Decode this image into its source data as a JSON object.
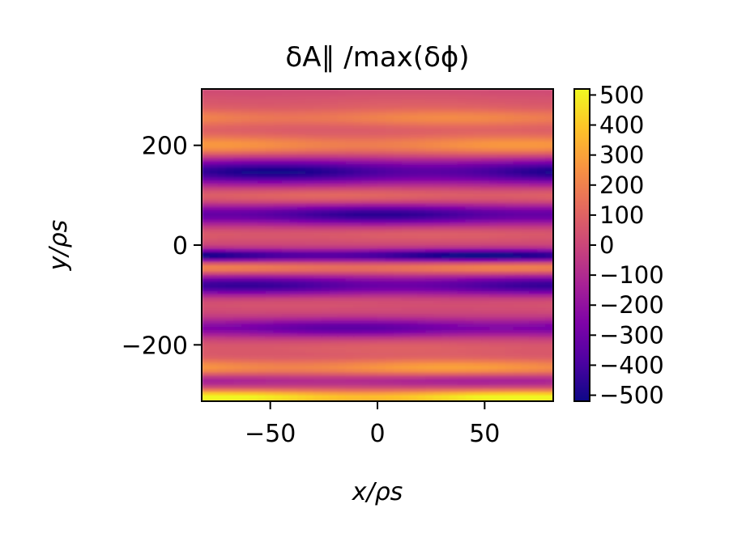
{
  "chart_data": {
    "type": "heatmap",
    "title": "δA∥ /max(δϕ)",
    "xlabel": "x/ρs",
    "ylabel": "y/ρs",
    "xlim": [
      -82,
      82
    ],
    "ylim": [
      -313,
      313
    ],
    "x_ticks": [
      -50,
      0,
      50
    ],
    "x_tick_labels": [
      "−50",
      "0",
      "50"
    ],
    "y_ticks": [
      -200,
      0,
      200
    ],
    "y_tick_labels": [
      "−200",
      "0",
      "200"
    ],
    "colormap": "plasma",
    "colorbar": {
      "vmin": -520,
      "vmax": 520,
      "ticks": [
        500,
        400,
        300,
        200,
        100,
        0,
        -100,
        -200,
        -300,
        -400,
        -500
      ],
      "tick_labels": [
        "500",
        "400",
        "300",
        "200",
        "100",
        "0",
        "−100",
        "−200",
        "−300",
        "−400",
        "−500"
      ]
    },
    "grid": false,
    "bands": [
      {
        "y": 285,
        "value": 60,
        "width": 25
      },
      {
        "y": 255,
        "value": 180,
        "width": 18
      },
      {
        "y": 225,
        "value": 40,
        "width": 18
      },
      {
        "y": 200,
        "value": 230,
        "width": 20
      },
      {
        "y": 148,
        "value": -430,
        "width": 25
      },
      {
        "y": 100,
        "value": 120,
        "width": 16
      },
      {
        "y": 62,
        "value": -400,
        "width": 20
      },
      {
        "y": 22,
        "value": 80,
        "width": 15
      },
      {
        "y": -20,
        "value": -470,
        "width": 12
      },
      {
        "y": -45,
        "value": 200,
        "width": 13
      },
      {
        "y": -80,
        "value": -380,
        "width": 20
      },
      {
        "y": -115,
        "value": 50,
        "width": 18
      },
      {
        "y": -165,
        "value": -300,
        "width": 18
      },
      {
        "y": -205,
        "value": 80,
        "width": 18
      },
      {
        "y": -245,
        "value": 260,
        "width": 18
      },
      {
        "y": -270,
        "value": -150,
        "width": 14
      },
      {
        "y": -305,
        "value": 470,
        "width": 15
      }
    ]
  }
}
